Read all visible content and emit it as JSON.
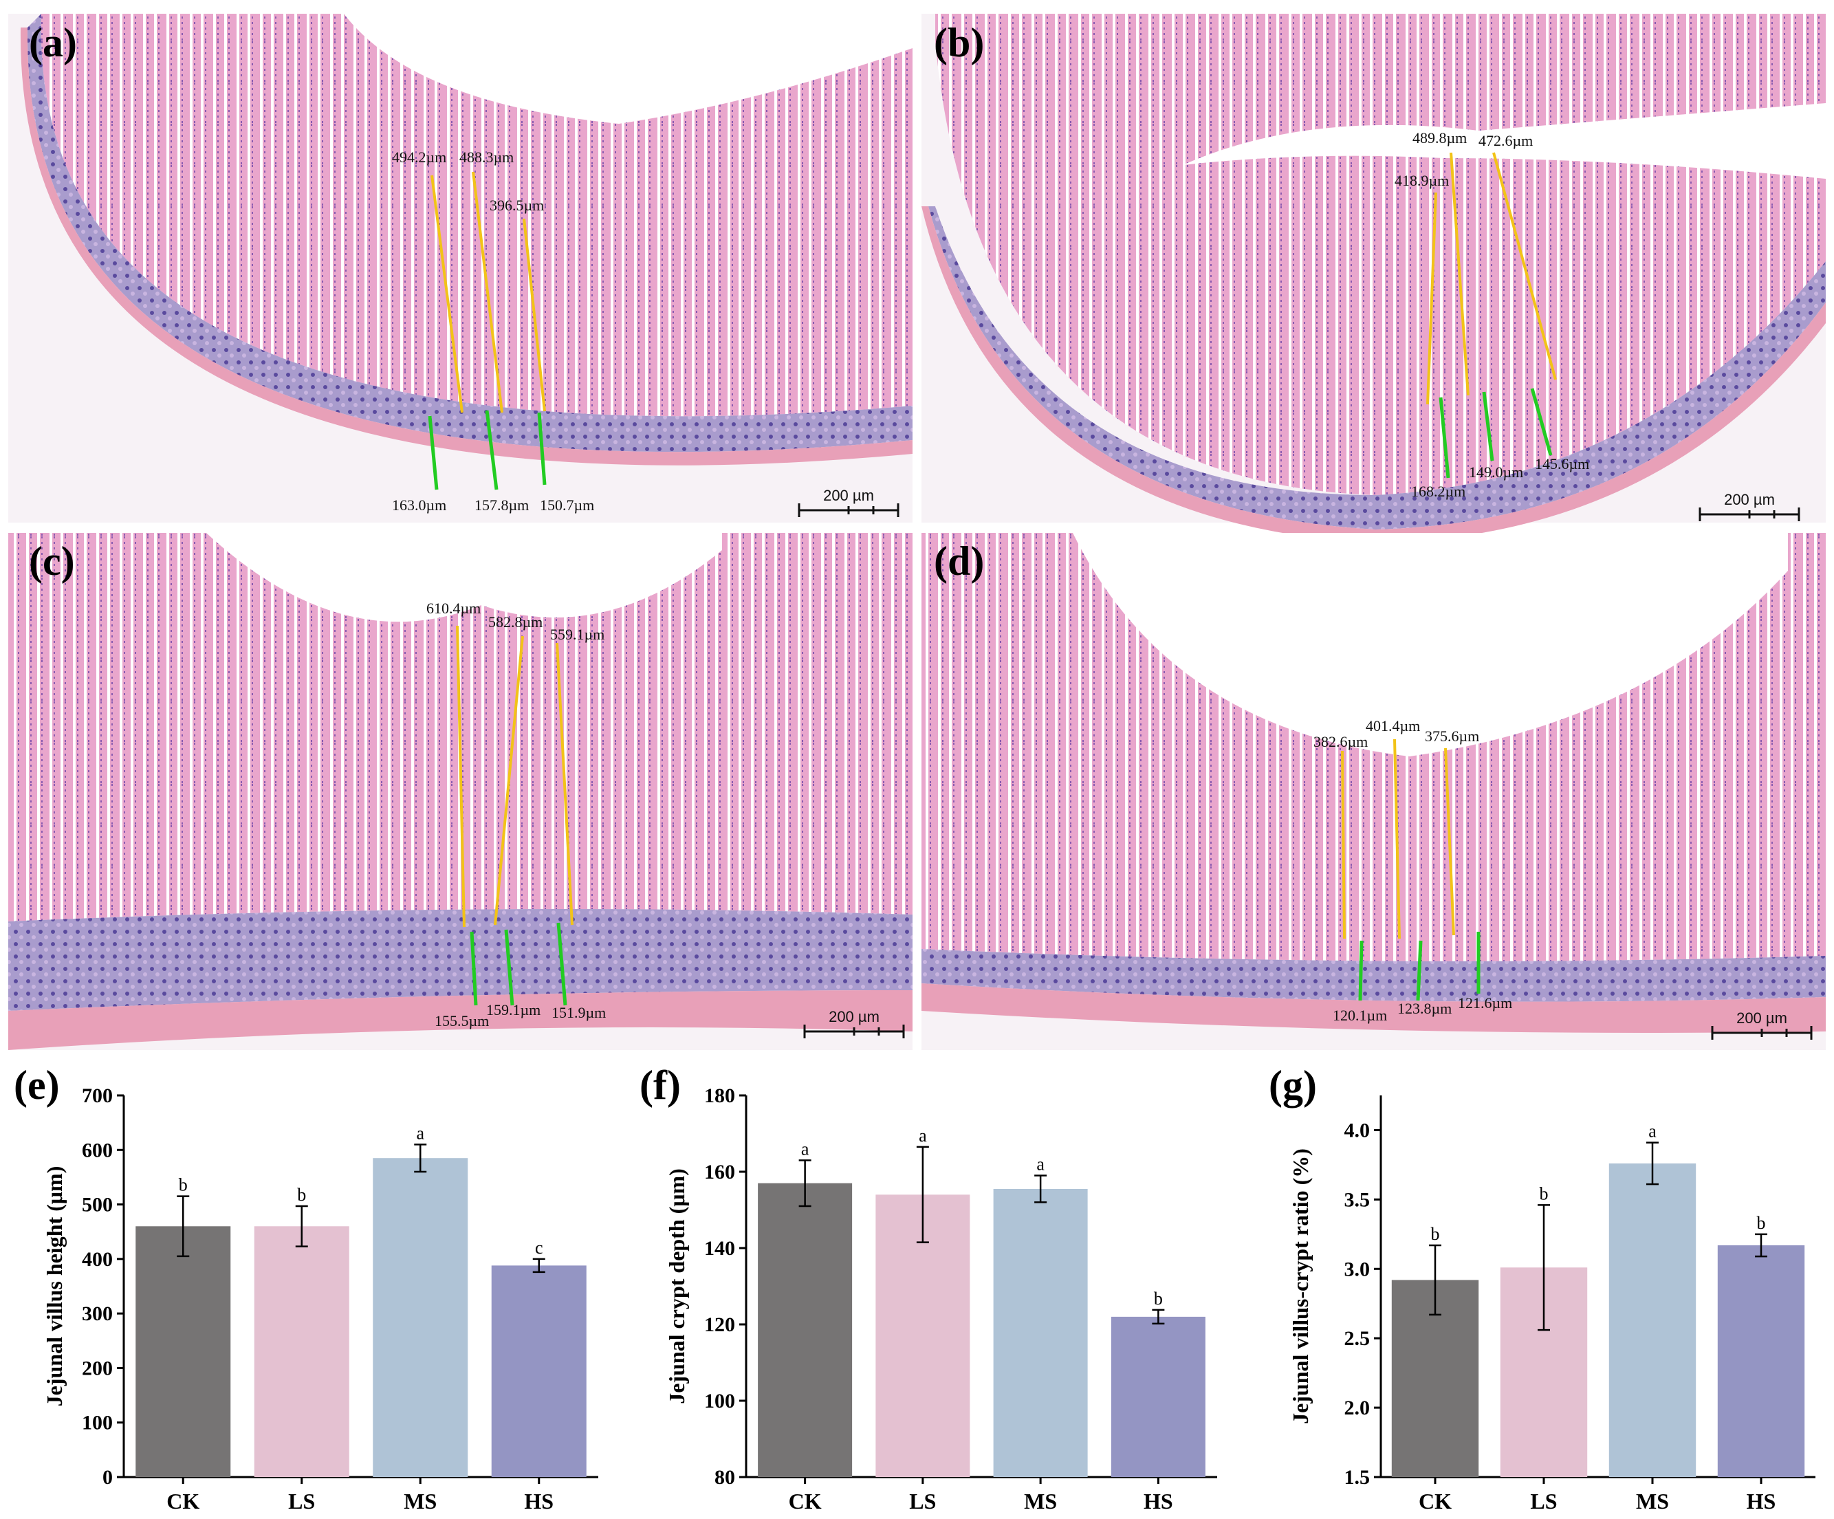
{
  "micrographs": [
    {
      "label": "(a)",
      "scale_bar": "200 µm",
      "villus": [
        "494.2µm",
        "488.3µm",
        "396.5µm"
      ],
      "crypt": [
        "163.0µm",
        "157.8µm",
        "150.7µm"
      ]
    },
    {
      "label": "(b)",
      "scale_bar": "200 µm",
      "villus": [
        "418.9µm",
        "489.8µm",
        "472.6µm"
      ],
      "crypt": [
        "168.2µm",
        "149.0µm",
        "145.6µm"
      ]
    },
    {
      "label": "(c)",
      "scale_bar": "200 µm",
      "villus": [
        "610.4µm",
        "582.8µm",
        "559.1µm"
      ],
      "crypt": [
        "155.5µm",
        "159.1µm",
        "151.9µm"
      ]
    },
    {
      "label": "(d)",
      "scale_bar": "200 µm",
      "villus": [
        "382.6µm",
        "401.4µm",
        "375.6µm"
      ],
      "crypt": [
        "120.1µm",
        "123.8µm",
        "121.6µm"
      ]
    }
  ],
  "chart_data": [
    {
      "panel": "(e)",
      "type": "bar",
      "categories": [
        "CK",
        "LS",
        "MS",
        "HS"
      ],
      "values": [
        460,
        460,
        585,
        388
      ],
      "errors": [
        55,
        37,
        25,
        12
      ],
      "letters": [
        "b",
        "b",
        "a",
        "c"
      ],
      "ylabel": "Jejunal villus height (μm)",
      "ylim": [
        0,
        700
      ],
      "ticks": [
        "0",
        "100",
        "200",
        "300",
        "400",
        "500",
        "600",
        "700"
      ],
      "colors": [
        "#767474",
        "#e4c1d1",
        "#afc3d6",
        "#9495c3"
      ]
    },
    {
      "panel": "(f)",
      "type": "bar",
      "categories": [
        "CK",
        "LS",
        "MS",
        "HS"
      ],
      "values": [
        157,
        154,
        155.5,
        122
      ],
      "errors": [
        6,
        12.5,
        3.5,
        1.8
      ],
      "letters": [
        "a",
        "a",
        "a",
        "b"
      ],
      "ylabel": "Jejunal crypt depth (μm)",
      "ylim": [
        80,
        180
      ],
      "ticks": [
        "80",
        "100",
        "120",
        "140",
        "160",
        "180"
      ],
      "colors": [
        "#767474",
        "#e4c1d1",
        "#afc3d6",
        "#9495c3"
      ]
    },
    {
      "panel": "(g)",
      "type": "bar",
      "categories": [
        "CK",
        "LS",
        "MS",
        "HS"
      ],
      "values": [
        2.92,
        3.01,
        3.76,
        3.17
      ],
      "errors": [
        0.25,
        0.45,
        0.15,
        0.08
      ],
      "letters": [
        "b",
        "b",
        "a",
        "b"
      ],
      "ylabel": "Jejunal villus-crypt ratio (%)",
      "ylim": [
        1.5,
        4.25
      ],
      "ticks": [
        "1.5",
        "2.0",
        "2.5",
        "3.0",
        "3.5",
        "4.0"
      ],
      "colors": [
        "#767474",
        "#e4c1d1",
        "#afc3d6",
        "#9495c3"
      ]
    }
  ]
}
